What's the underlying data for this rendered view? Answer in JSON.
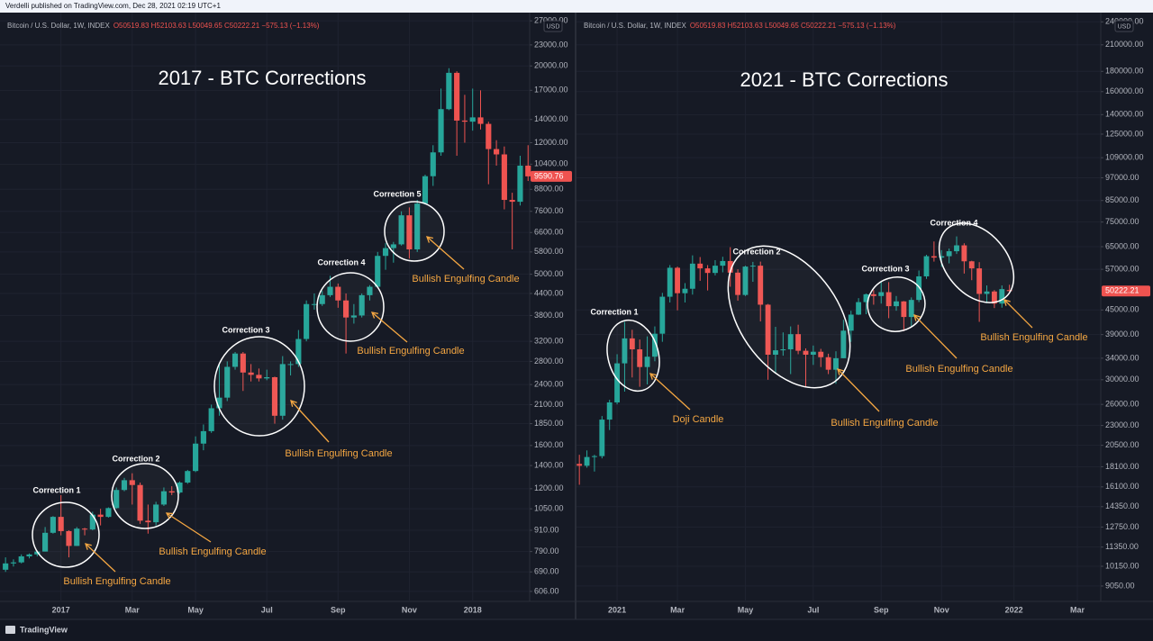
{
  "header": "Verdelli published on TradingView.com, Dec 28, 2021 02:19 UTC+1",
  "footer": "TradingView",
  "chart_data": [
    {
      "type": "candlestick",
      "title": "2017 - BTC Corrections",
      "legend_text": "O50519.83 H52103.63 L50049.65 C50222.21 −575.13 (−1.13%)",
      "currency": "USD",
      "log_scale": true,
      "grid": true,
      "up_color": "#26a69a",
      "down_color": "#ef5350",
      "xlim": [
        -0.7,
        66.2
      ],
      "xticks": [
        {
          "value": 7,
          "label": "2017"
        },
        {
          "value": 16,
          "label": "Mar"
        },
        {
          "value": 24,
          "label": "May"
        },
        {
          "value": 33,
          "label": "Jul"
        },
        {
          "value": 42,
          "label": "Sep"
        },
        {
          "value": 51,
          "label": "Nov"
        },
        {
          "value": 59,
          "label": "2018"
        }
      ],
      "ylim": [
        567,
        27840
      ],
      "yticks": [
        {
          "value": 606,
          "label": "606.00"
        },
        {
          "value": 690,
          "label": "690.00"
        },
        {
          "value": 790,
          "label": "790.00"
        },
        {
          "value": 910,
          "label": "910.00"
        },
        {
          "value": 1050,
          "label": "1050.00"
        },
        {
          "value": 1200,
          "label": "1200.00"
        },
        {
          "value": 1400,
          "label": "1400.00"
        },
        {
          "value": 1600,
          "label": "1600.00"
        },
        {
          "value": 1850,
          "label": "1850.00"
        },
        {
          "value": 2100,
          "label": "2100.00"
        },
        {
          "value": 2400,
          "label": "2400.00"
        },
        {
          "value": 2800,
          "label": "2800.00"
        },
        {
          "value": 3200,
          "label": "3200.00"
        },
        {
          "value": 3800,
          "label": "3800.00"
        },
        {
          "value": 4400,
          "label": "4400.00"
        },
        {
          "value": 5000,
          "label": "5000.00"
        },
        {
          "value": 5800,
          "label": "5800.00"
        },
        {
          "value": 6600,
          "label": "6600.00"
        },
        {
          "value": 7600,
          "label": "7600.00"
        },
        {
          "value": 8800,
          "label": "8800.00"
        },
        {
          "value": 10400,
          "label": "10400.00"
        },
        {
          "value": 12000,
          "label": "12000.00"
        },
        {
          "value": 14000,
          "label": "14000.00"
        },
        {
          "value": 17000,
          "label": "17000.00"
        },
        {
          "value": 20000,
          "label": "20000.00"
        },
        {
          "value": 23000,
          "label": "23000.00"
        },
        {
          "value": 27000,
          "label": "27000.00"
        }
      ],
      "series": [
        {
          "name": "Bitcoin / U.S. Dollar, 1W, INDEX",
          "open": [
            700,
            730,
            735,
            765,
            775,
            790,
            895,
            995,
            905,
            820,
            920,
            915,
            1010,
            995,
            1055,
            1190,
            1270,
            1230,
            970,
            960,
            1080,
            1180,
            1170,
            1250,
            1350,
            1620,
            1760,
            2050,
            2200,
            2700,
            2950,
            2600,
            2560,
            2500,
            2520,
            1950,
            2750,
            2750,
            3250,
            4100,
            4100,
            4350,
            4600,
            4200,
            3750,
            3800,
            4350,
            4600,
            5650,
            5950,
            6100,
            7400,
            5900,
            8000,
            9600,
            11250,
            15000,
            19100,
            13900,
            13800,
            14200,
            13600,
            11500,
            11100,
            8200,
            8100,
            10300
          ],
          "high": [
            760,
            750,
            775,
            780,
            795,
            930,
            1000,
            1150,
            910,
            930,
            925,
            1030,
            1050,
            1060,
            1210,
            1290,
            1330,
            1250,
            1080,
            1100,
            1210,
            1220,
            1260,
            1360,
            1700,
            1840,
            2100,
            2760,
            2800,
            2980,
            2980,
            2750,
            2670,
            2650,
            2530,
            2900,
            2800,
            3450,
            4200,
            4400,
            4480,
            4950,
            4700,
            4400,
            4100,
            4400,
            4650,
            5800,
            6150,
            6200,
            7600,
            7800,
            8200,
            9700,
            11800,
            17200,
            19700,
            19300,
            16500,
            17200,
            17000,
            13800,
            12200,
            11700,
            8600,
            11000,
            11800
          ],
          "low": [
            690,
            715,
            730,
            755,
            765,
            790,
            890,
            880,
            760,
            820,
            880,
            910,
            940,
            990,
            1050,
            1180,
            1080,
            950,
            890,
            940,
            1070,
            1150,
            1160,
            1240,
            1340,
            1550,
            1740,
            1950,
            2150,
            2650,
            2300,
            2450,
            2450,
            2470,
            1850,
            1900,
            2550,
            2700,
            3200,
            3950,
            4050,
            4300,
            4000,
            2950,
            3600,
            3750,
            4200,
            4600,
            5150,
            5400,
            6050,
            5550,
            5800,
            7950,
            9000,
            11000,
            14900,
            11000,
            12000,
            13000,
            13100,
            9100,
            10300,
            7700,
            5900,
            7900,
            9300
          ],
          "close": [
            730,
            735,
            765,
            775,
            790,
            895,
            995,
            905,
            820,
            920,
            915,
            1010,
            995,
            1055,
            1190,
            1270,
            1230,
            970,
            960,
            1080,
            1180,
            1170,
            1250,
            1350,
            1620,
            1760,
            2050,
            2200,
            2700,
            2950,
            2600,
            2560,
            2500,
            2520,
            1950,
            2750,
            2750,
            3250,
            4100,
            4100,
            4350,
            4600,
            4200,
            3750,
            3800,
            4350,
            4600,
            5650,
            5950,
            6100,
            7400,
            5900,
            8000,
            9600,
            11250,
            15000,
            19100,
            13900,
            13800,
            14200,
            13600,
            11500,
            11100,
            8200,
            8100,
            10300,
            9590.76
          ]
        }
      ],
      "annotations": [
        {
          "label": "Correction 1",
          "note": "Bullish Engulfing Candle"
        },
        {
          "label": "Correction 2",
          "note": "Bullish Engulfing Candle"
        },
        {
          "label": "Correction 3",
          "note": "Bullish Engulfing Candle"
        },
        {
          "label": "Correction 4",
          "note": "Bullish Engulfing Candle"
        },
        {
          "label": "Correction 5",
          "note": "Bullish Engulfing Candle"
        }
      ]
    },
    {
      "type": "candlestick",
      "title": "2021 - BTC Corrections",
      "legend_text": "O50519.83 H52103.63 L50049.65 C50222.21 −575.13 (−1.13%)",
      "currency": "USD",
      "log_scale": true,
      "grid": true,
      "up_color": "#26a69a",
      "down_color": "#ef5350",
      "xlim": [
        -0.38,
        69.1
      ],
      "xticks": [
        {
          "value": 5,
          "label": "2021"
        },
        {
          "value": 13,
          "label": "Mar"
        },
        {
          "value": 22,
          "label": "May"
        },
        {
          "value": 31,
          "label": "Jul"
        },
        {
          "value": 40,
          "label": "Sep"
        },
        {
          "value": 48,
          "label": "Nov"
        },
        {
          "value": 57.6,
          "label": "2022"
        },
        {
          "value": 66,
          "label": "Mar"
        }
      ],
      "ylim": [
        8277,
        248000
      ],
      "yticks": [
        {
          "value": 9050,
          "label": "9050.00"
        },
        {
          "value": 10150,
          "label": "10150.00"
        },
        {
          "value": 11350,
          "label": "11350.00"
        },
        {
          "value": 12750,
          "label": "12750.00"
        },
        {
          "value": 14350,
          "label": "14350.00"
        },
        {
          "value": 16100,
          "label": "16100.00"
        },
        {
          "value": 18100,
          "label": "18100.00"
        },
        {
          "value": 20500,
          "label": "20500.00"
        },
        {
          "value": 23000,
          "label": "23000.00"
        },
        {
          "value": 26000,
          "label": "26000.00"
        },
        {
          "value": 30000,
          "label": "30000.00"
        },
        {
          "value": 34000,
          "label": "34000.00"
        },
        {
          "value": 39000,
          "label": "39000.00"
        },
        {
          "value": 45000,
          "label": "45000.00"
        },
        {
          "value": 57000,
          "label": "57000.00"
        },
        {
          "value": 65000,
          "label": "65000.00"
        },
        {
          "value": 75000,
          "label": "75000.00"
        },
        {
          "value": 85000,
          "label": "85000.00"
        },
        {
          "value": 97000,
          "label": "97000.00"
        },
        {
          "value": 109000,
          "label": "109000.00"
        },
        {
          "value": 125000,
          "label": "125000.00"
        },
        {
          "value": 140000,
          "label": "140000.00"
        },
        {
          "value": 160000,
          "label": "160000.00"
        },
        {
          "value": 180000,
          "label": "180000.00"
        },
        {
          "value": 210000,
          "label": "210000.00"
        },
        {
          "value": 240000,
          "label": "240000.00"
        }
      ],
      "series": [
        {
          "name": "Bitcoin / U.S. Dollar, 1W, INDEX",
          "open": [
            18400,
            18200,
            19150,
            19250,
            23800,
            26300,
            33000,
            38150,
            35800,
            32300,
            34300,
            39200,
            48600,
            57500,
            49600,
            50900,
            58900,
            57300,
            55800,
            58200,
            59800,
            55900,
            49100,
            57900,
            58200,
            46400,
            34700,
            35600,
            35800,
            39100,
            35500,
            34700,
            35300,
            34200,
            31800,
            34000,
            39900,
            43800,
            47100,
            49300,
            48800,
            49900,
            46000,
            47300,
            43200,
            47700,
            54700,
            61500,
            61000,
            61500,
            63300,
            65500,
            59700,
            57300,
            49400,
            50100,
            46700,
            50519.83
          ],
          "high": [
            19400,
            19900,
            19400,
            24300,
            26700,
            34800,
            42000,
            40100,
            37900,
            38600,
            40900,
            49700,
            58400,
            57900,
            52600,
            61800,
            61200,
            58400,
            60100,
            61300,
            64800,
            57000,
            58200,
            59500,
            59600,
            46600,
            40800,
            39500,
            40900,
            41300,
            36000,
            36600,
            35900,
            34900,
            35400,
            42500,
            44800,
            48200,
            49500,
            50500,
            52900,
            52900,
            48800,
            47400,
            48400,
            56600,
            62000,
            67000,
            63700,
            64300,
            69000,
            66300,
            59900,
            59400,
            51900,
            50500,
            51900,
            52103.63
          ],
          "low": [
            16300,
            18000,
            17600,
            19000,
            22400,
            26000,
            28000,
            30400,
            28800,
            29200,
            33400,
            37400,
            47000,
            44900,
            47000,
            49200,
            53300,
            50400,
            55000,
            56000,
            51500,
            47500,
            48800,
            53000,
            42100,
            30000,
            31200,
            34500,
            31000,
            34800,
            28800,
            32700,
            32300,
            31000,
            29300,
            34000,
            37400,
            43700,
            43900,
            46400,
            46700,
            42900,
            44800,
            39800,
            40800,
            47100,
            53900,
            59600,
            57800,
            59000,
            62300,
            55600,
            53500,
            42000,
            46800,
            45500,
            45600,
            50049.65
          ],
          "close": [
            18200,
            19150,
            19250,
            23800,
            26300,
            33000,
            38150,
            35800,
            32300,
            34300,
            39200,
            48600,
            57500,
            49600,
            50900,
            58900,
            57300,
            55800,
            58200,
            59800,
            55900,
            49100,
            57900,
            58200,
            46400,
            34700,
            35600,
            35800,
            39100,
            35500,
            34700,
            35300,
            34200,
            31800,
            34000,
            39900,
            43800,
            47100,
            49300,
            48800,
            49900,
            46000,
            47300,
            43200,
            47700,
            54700,
            61500,
            61000,
            61500,
            63300,
            65500,
            59700,
            57300,
            49400,
            50100,
            46700,
            50797.34,
            50222.21
          ]
        }
      ],
      "annotations": [
        {
          "label": "Correction 1",
          "note": "Doji Candle"
        },
        {
          "label": "Correction 2",
          "note": "Bullish Engulfing Candle"
        },
        {
          "label": "Correction 3",
          "note": "Bullish Engulfing Candle"
        },
        {
          "label": "Correction 4",
          "note": "Bullish Engulfing Candle"
        }
      ]
    }
  ]
}
